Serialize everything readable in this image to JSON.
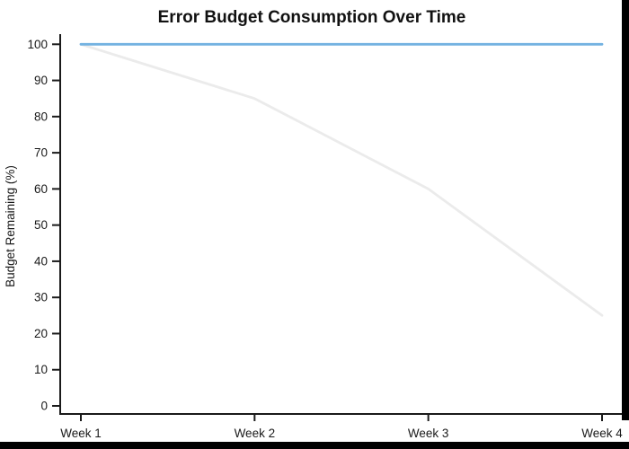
{
  "window": {
    "background_color": "#000000",
    "canvas_color": "#ffffff"
  },
  "chart_data": {
    "type": "line",
    "title": "Error Budget Consumption Over Time",
    "xlabel": "",
    "ylabel": "Budget Remaining (%)",
    "categories": [
      "Week 1",
      "Week 2",
      "Week 3",
      "Week 4"
    ],
    "series": [
      {
        "name": "budget-remaining-declining-gray-line",
        "values": [
          100,
          85,
          60,
          25
        ],
        "color": "#ebebeb"
      },
      {
        "name": "full-budget-reference-blue-line",
        "values": [
          100,
          100,
          100,
          100
        ],
        "color": "#73b2e1"
      }
    ],
    "y_ticks": [
      0,
      10,
      20,
      30,
      40,
      50,
      60,
      70,
      80,
      90,
      100
    ],
    "ylim": [
      0,
      100
    ],
    "grid": false,
    "legend": "none",
    "axis_color": "#1a1a1a"
  }
}
